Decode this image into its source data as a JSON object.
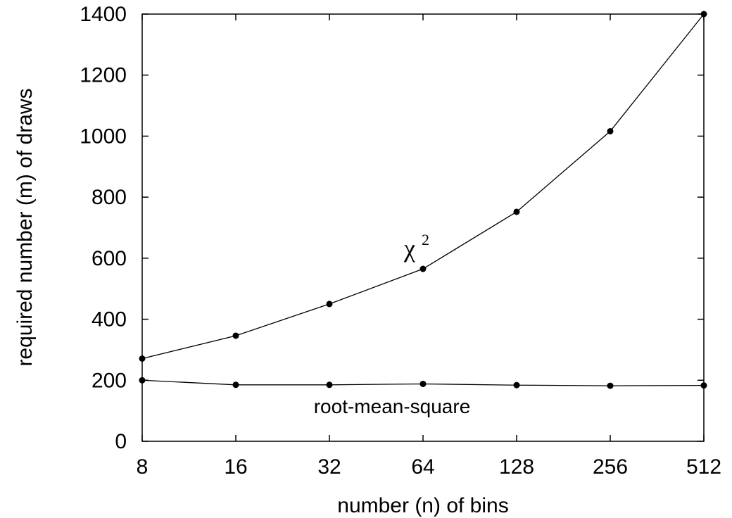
{
  "chart_data": {
    "type": "line",
    "x_scale": "log2",
    "x": [
      8,
      16,
      32,
      64,
      128,
      256,
      512
    ],
    "x_tick_labels": [
      "8",
      "16",
      "32",
      "64",
      "128",
      "256",
      "512"
    ],
    "y_ticks": [
      0,
      200,
      400,
      600,
      800,
      1000,
      1200,
      1400
    ],
    "y_tick_labels": [
      "0",
      "200",
      "400",
      "600",
      "800",
      "1000",
      "1200",
      "1400"
    ],
    "xlim": [
      8,
      512
    ],
    "ylim": [
      0,
      1400
    ],
    "xlabel": "number (n) of bins",
    "ylabel": "required number (m) of draws",
    "grid": false,
    "series": [
      {
        "values": [
          271,
          346,
          450,
          565,
          752,
          1016,
          1400
        ]
      },
      {
        "values": [
          200,
          185,
          185,
          188,
          184,
          182,
          183
        ]
      }
    ],
    "annotations": {
      "chi_base": "χ",
      "chi_exp": "2",
      "rms": "root-mean-square"
    }
  }
}
